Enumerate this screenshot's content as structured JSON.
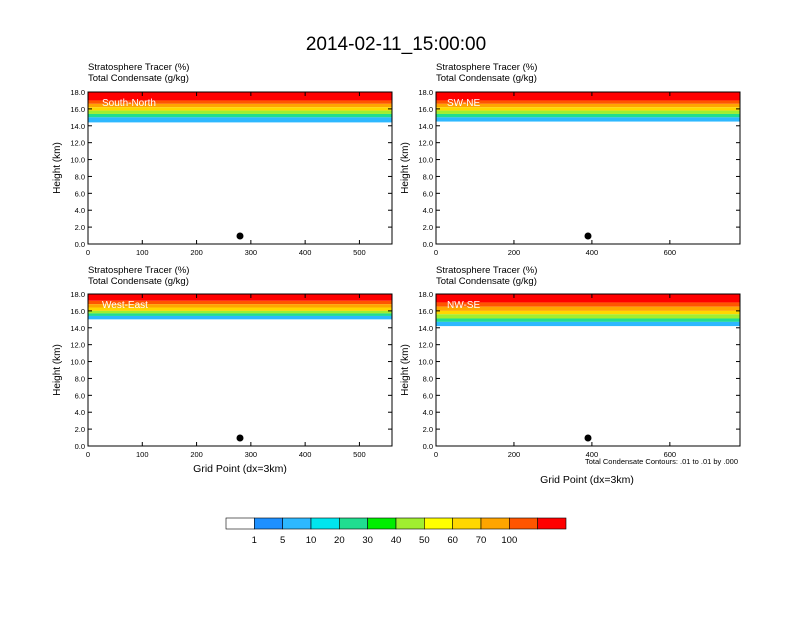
{
  "page": {
    "title": "2014-02-11_15:00:00"
  },
  "colorbar": {
    "colors": [
      "#ffffff",
      "#1e90ff",
      "#2db8ff",
      "#00e5ee",
      "#20dd90",
      "#00ee00",
      "#a0ee30",
      "#ffff00",
      "#ffd700",
      "#ffa500",
      "#ff5500",
      "#ff0000"
    ],
    "labels": [
      "1",
      "5",
      "10",
      "20",
      "30",
      "40",
      "50",
      "60",
      "70",
      "100"
    ]
  },
  "footnote": "Total Condensate Contours: .01 to .01 by .000",
  "chart_data": [
    {
      "type": "heatmap",
      "label": "South-North",
      "title_line1": "Stratosphere Tracer   (%)",
      "title_line2": "Total Condensate   (g/kg)",
      "ylabel": "Height (km)",
      "xlabel": "",
      "xlim": [
        0,
        560
      ],
      "ylim": [
        0,
        18
      ],
      "xticks": [
        0,
        100,
        200,
        300,
        400,
        500
      ],
      "yticks": [
        "0.0",
        "2.0",
        "4.0",
        "6.0",
        "8.0",
        "10.0",
        "12.0",
        "14.0",
        "16.0",
        "18.0"
      ],
      "marker_x": 280,
      "bands": [
        {
          "level": 11,
          "bottom": 17.0
        },
        {
          "level": 10,
          "bottom": 16.6
        },
        {
          "level": 9,
          "bottom": 16.2
        },
        {
          "level": 8,
          "bottom": 15.8
        },
        {
          "level": 6,
          "bottom": 15.4
        },
        {
          "level": 4,
          "bottom": 15.0
        },
        {
          "level": 2,
          "bottom": 14.4
        }
      ]
    },
    {
      "type": "heatmap",
      "label": "SW-NE",
      "title_line1": "Stratosphere Tracer   (%)",
      "title_line2": "Total Condensate   (g/kg)",
      "ylabel": "Height (km)",
      "xlabel": "",
      "xlim": [
        0,
        780
      ],
      "ylim": [
        0,
        18
      ],
      "xticks": [
        0,
        200,
        400,
        600
      ],
      "yticks": [
        "0.0",
        "2.0",
        "4.0",
        "6.0",
        "8.0",
        "10.0",
        "12.0",
        "14.0",
        "16.0",
        "18.0"
      ],
      "marker_x": 390,
      "bands": [
        {
          "level": 11,
          "bottom": 17.0
        },
        {
          "level": 10,
          "bottom": 16.6
        },
        {
          "level": 9,
          "bottom": 16.2
        },
        {
          "level": 8,
          "bottom": 15.8
        },
        {
          "level": 6,
          "bottom": 15.4
        },
        {
          "level": 4,
          "bottom": 15.0
        },
        {
          "level": 2,
          "bottom": 14.5
        }
      ]
    },
    {
      "type": "heatmap",
      "label": "West-East",
      "title_line1": "Stratosphere Tracer   (%)",
      "title_line2": "Total Condensate   (g/kg)",
      "ylabel": "Height (km)",
      "xlabel": "Grid Point (dx=3km)",
      "xlim": [
        0,
        560
      ],
      "ylim": [
        0,
        18
      ],
      "xticks": [
        0,
        100,
        200,
        300,
        400,
        500
      ],
      "yticks": [
        "0.0",
        "2.0",
        "4.0",
        "6.0",
        "8.0",
        "10.0",
        "12.0",
        "14.0",
        "16.0",
        "18.0"
      ],
      "marker_x": 280,
      "bands": [
        {
          "level": 11,
          "bottom": 17.2
        },
        {
          "level": 10,
          "bottom": 16.8
        },
        {
          "level": 9,
          "bottom": 16.4
        },
        {
          "level": 8,
          "bottom": 16.0
        },
        {
          "level": 6,
          "bottom": 15.7
        },
        {
          "level": 4,
          "bottom": 15.4
        },
        {
          "level": 2,
          "bottom": 15.0
        }
      ]
    },
    {
      "type": "heatmap",
      "label": "NW-SE",
      "title_line1": "Stratosphere Tracer   (%)",
      "title_line2": "Total Condensate   (g/kg)",
      "ylabel": "Height (km)",
      "xlabel": "Grid Point (dx=3km)",
      "xlim": [
        0,
        780
      ],
      "ylim": [
        0,
        18
      ],
      "xticks": [
        0,
        200,
        400,
        600
      ],
      "yticks": [
        "0.0",
        "2.0",
        "4.0",
        "6.0",
        "8.0",
        "10.0",
        "12.0",
        "14.0",
        "16.0",
        "18.0"
      ],
      "marker_x": 390,
      "bands": [
        {
          "level": 11,
          "bottom": 17.0
        },
        {
          "level": 10,
          "bottom": 16.5
        },
        {
          "level": 9,
          "bottom": 16.0
        },
        {
          "level": 8,
          "bottom": 15.6
        },
        {
          "level": 6,
          "bottom": 15.1
        },
        {
          "level": 4,
          "bottom": 14.7
        },
        {
          "level": 2,
          "bottom": 14.2
        }
      ]
    }
  ]
}
